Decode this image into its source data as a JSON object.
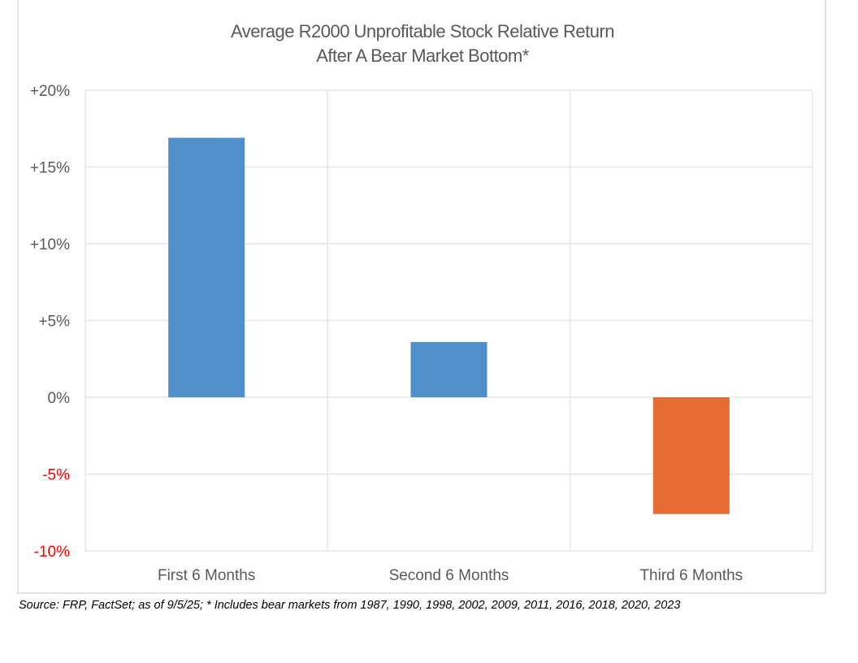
{
  "chart_data": {
    "type": "bar",
    "title": "Average R2000 Unprofitable Stock Relative Return",
    "subtitle": "After A Bear Market Bottom*",
    "categories": [
      "First 6 Months",
      "Second 6 Months",
      "Third 6 Months"
    ],
    "values": [
      16.9,
      3.6,
      -7.6
    ],
    "unit": "%",
    "ylim": [
      -10,
      20
    ],
    "yticks": [
      20,
      15,
      10,
      5,
      0,
      -5,
      -10
    ],
    "ytick_labels": [
      "+20%",
      "+15%",
      "+10%",
      "+5%",
      "0%",
      "-5%",
      "-10%"
    ],
    "grid": true,
    "xlabel": "",
    "ylabel": "",
    "colors": {
      "positive": "#4e8fcc",
      "negative": "#e46c33",
      "negative_tick": "#ff0000",
      "tick": "#595959",
      "grid": "#e6e6e6"
    }
  },
  "source": "Source: FRP, FactSet; as of 9/5/25; * Includes bear markets from 1987, 1990, 1998, 2002, 2009, 2011, 2016, 2018, 2020, 2023"
}
